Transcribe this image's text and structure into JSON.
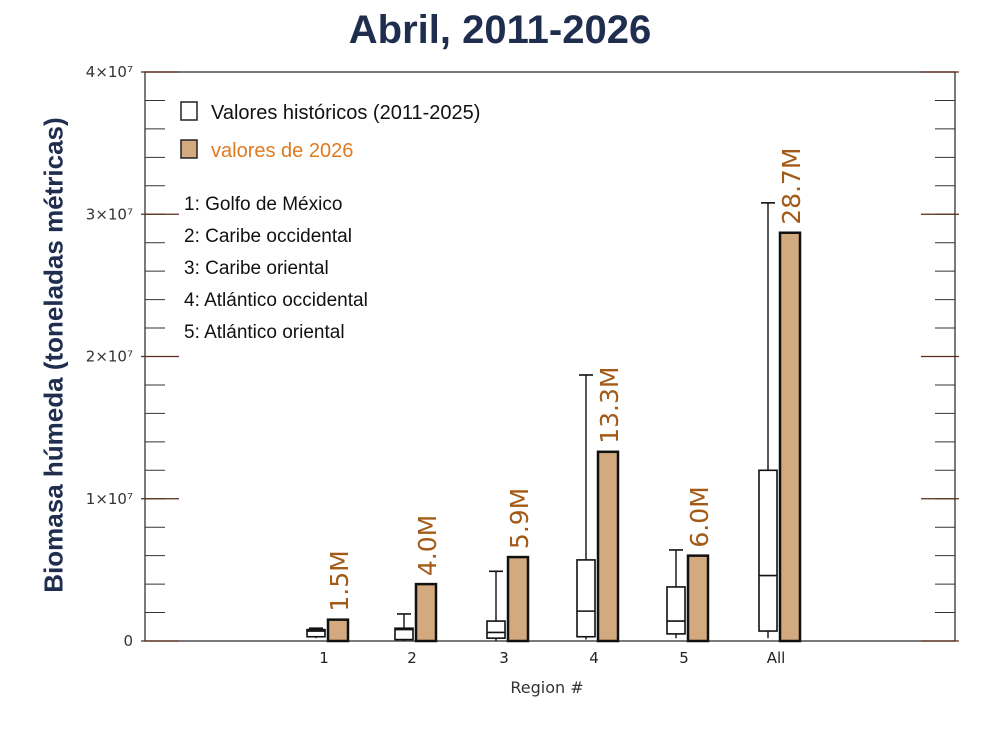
{
  "chart_data": {
    "type": "bar",
    "title": "Abril, 2011-2026",
    "ylabel": "Biomasa húmeda (toneladas métricas)",
    "xlabel": "Region #",
    "categories": [
      "1",
      "2",
      "3",
      "4",
      "5",
      "All"
    ],
    "ylim": [
      0,
      40000000
    ],
    "yticks": [
      {
        "value": 0,
        "label": "0"
      },
      {
        "value": 10000000,
        "label": "1×10⁷"
      },
      {
        "value": 20000000,
        "label": "2×10⁷"
      },
      {
        "value": 30000000,
        "label": "3×10⁷"
      },
      {
        "value": 40000000,
        "label": "4×10⁷"
      }
    ],
    "grid": false,
    "legend_position": "top-left",
    "series": [
      {
        "name": "Valores históricos (2011-2025)",
        "kind": "box",
        "color": "#ffffff",
        "edge_color": "#111111",
        "values": [
          {
            "min": 200000,
            "q1": 300000,
            "median": 700000,
            "q3": 800000,
            "max": 900000
          },
          {
            "min": 0,
            "q1": 100000,
            "median": 800000,
            "q3": 900000,
            "max": 1900000
          },
          {
            "min": 0,
            "q1": 200000,
            "median": 600000,
            "q3": 1400000,
            "max": 4900000
          },
          {
            "min": 100000,
            "q1": 300000,
            "median": 2100000,
            "q3": 5700000,
            "max": 18700000
          },
          {
            "min": 200000,
            "q1": 500000,
            "median": 1400000,
            "q3": 3800000,
            "max": 6400000
          },
          {
            "min": 200000,
            "q1": 700000,
            "median": 4600000,
            "q3": 12000000,
            "max": 30800000
          }
        ]
      },
      {
        "name": "valores de 2026",
        "kind": "bar",
        "color": "#d3aa80",
        "edge_color": "#111111",
        "values": [
          1500000,
          4000000,
          5900000,
          13300000,
          6000000,
          28700000
        ],
        "labels": [
          "1.5M",
          "4.0M",
          "5.9M",
          "13.3M",
          "6.0M",
          "28.7M"
        ],
        "label_color": "#a35a17"
      }
    ],
    "legend_text_colors": [
      "#111111",
      "#e07a1f"
    ],
    "region_key": [
      "1: Golfo de México",
      "2: Caribe occidental",
      "3: Caribe oriental",
      "4: Atlántico occidental",
      "5: Atlántico oriental"
    ]
  }
}
